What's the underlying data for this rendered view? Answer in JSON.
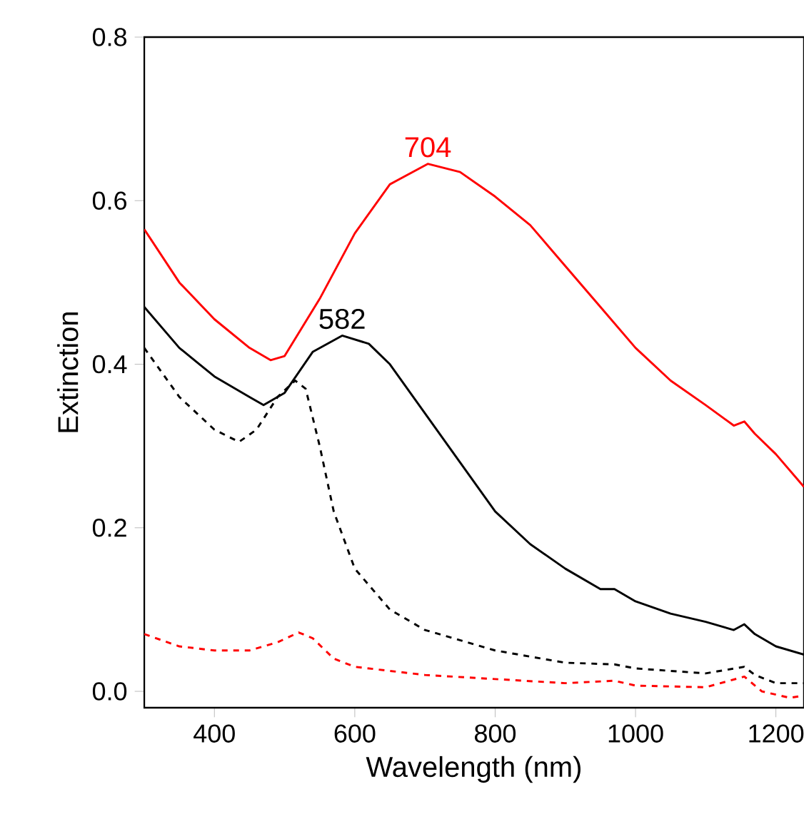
{
  "chart_data": {
    "type": "line",
    "xlabel": "Wavelength (nm)",
    "ylabel": "Extinction",
    "xlim": [
      300,
      1240
    ],
    "ylim": [
      -0.02,
      0.8
    ],
    "xticks": [
      400,
      600,
      800,
      1000,
      1200
    ],
    "yticks": [
      {
        "value": 0,
        "label": "0.0"
      },
      0.2,
      0.4,
      0.6,
      0.8
    ],
    "series": [
      {
        "color": "#ff0000",
        "line_style": "solid",
        "x": [
          300,
          350,
          400,
          450,
          480,
          500,
          550,
          600,
          650,
          704,
          750,
          800,
          850,
          900,
          950,
          1000,
          1050,
          1100,
          1140,
          1155,
          1170,
          1200,
          1240
        ],
        "values": [
          0.565,
          0.5,
          0.455,
          0.42,
          0.405,
          0.41,
          0.48,
          0.56,
          0.62,
          0.645,
          0.635,
          0.605,
          0.57,
          0.52,
          0.47,
          0.42,
          0.38,
          0.35,
          0.325,
          0.33,
          0.315,
          0.29,
          0.25
        ]
      },
      {
        "color": "#000000",
        "line_style": "solid",
        "x": [
          300,
          350,
          400,
          450,
          470,
          500,
          540,
          582,
          620,
          650,
          700,
          750,
          800,
          850,
          900,
          950,
          970,
          1000,
          1050,
          1100,
          1140,
          1155,
          1170,
          1200,
          1240
        ],
        "values": [
          0.47,
          0.42,
          0.385,
          0.36,
          0.35,
          0.365,
          0.415,
          0.435,
          0.425,
          0.4,
          0.34,
          0.28,
          0.22,
          0.18,
          0.15,
          0.125,
          0.125,
          0.11,
          0.095,
          0.085,
          0.075,
          0.082,
          0.07,
          0.055,
          0.045
        ]
      },
      {
        "color": "#000000",
        "line_style": "dashed",
        "x": [
          300,
          350,
          400,
          435,
          460,
          490,
          515,
          530,
          550,
          570,
          600,
          650,
          700,
          800,
          900,
          970,
          1000,
          1100,
          1155,
          1170,
          1200,
          1240
        ],
        "values": [
          0.42,
          0.36,
          0.32,
          0.305,
          0.32,
          0.36,
          0.38,
          0.37,
          0.3,
          0.22,
          0.15,
          0.1,
          0.075,
          0.05,
          0.035,
          0.033,
          0.028,
          0.022,
          0.03,
          0.02,
          0.01,
          0.01
        ]
      },
      {
        "color": "#ff0000",
        "line_style": "dashed",
        "x": [
          300,
          350,
          400,
          450,
          490,
          520,
          540,
          570,
          600,
          700,
          800,
          900,
          970,
          1000,
          1100,
          1155,
          1180,
          1220,
          1240
        ],
        "values": [
          0.07,
          0.055,
          0.05,
          0.05,
          0.06,
          0.072,
          0.065,
          0.04,
          0.03,
          0.02,
          0.015,
          0.01,
          0.013,
          0.007,
          0.005,
          0.018,
          0.0,
          -0.008,
          -0.005
        ]
      }
    ],
    "annotations": [
      {
        "text": "704",
        "x": 704,
        "y": 0.645
      },
      {
        "text": "582",
        "x": 582,
        "y": 0.435
      }
    ]
  }
}
